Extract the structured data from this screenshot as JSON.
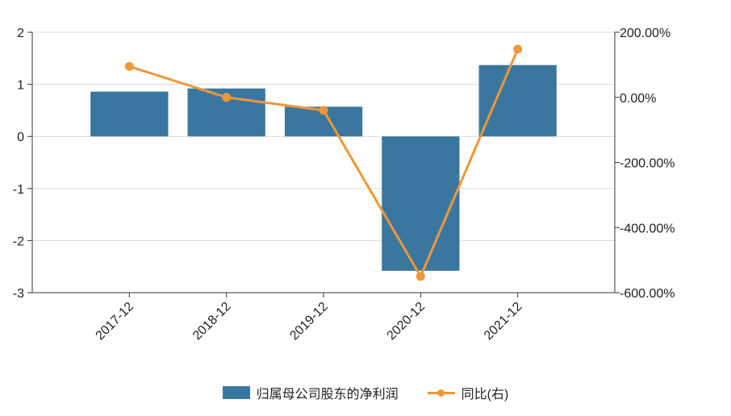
{
  "chart_data": {
    "type": "bar",
    "categories": [
      "2017-12",
      "2018-12",
      "2019-12",
      "2020-12",
      "2021-12"
    ],
    "series": [
      {
        "name": "归属母公司股东的净利润",
        "type": "bar",
        "axis": "left",
        "values": [
          0.86,
          0.92,
          0.57,
          -2.58,
          1.37
        ],
        "color": "#3a779e"
      },
      {
        "name": "同比(右)",
        "type": "line",
        "axis": "right",
        "values": [
          95.0,
          0.0,
          -40.0,
          -550.0,
          148.0
        ],
        "color": "#f0963a"
      }
    ],
    "y_left": {
      "lim": [
        -3,
        2
      ],
      "ticks": [
        2,
        1,
        0,
        -1,
        -2,
        -3
      ],
      "tick_labels": [
        "2",
        "1",
        "0",
        "-1",
        "-2",
        "-3"
      ]
    },
    "y_right": {
      "lim": [
        -600,
        200
      ],
      "ticks": [
        200,
        0,
        -200,
        -400,
        -600
      ],
      "tick_labels": [
        "200.00%",
        "0.00%",
        "-200.00%",
        "-400.00%",
        "-600.00%"
      ]
    },
    "grid": true,
    "legend_position": "bottom"
  }
}
